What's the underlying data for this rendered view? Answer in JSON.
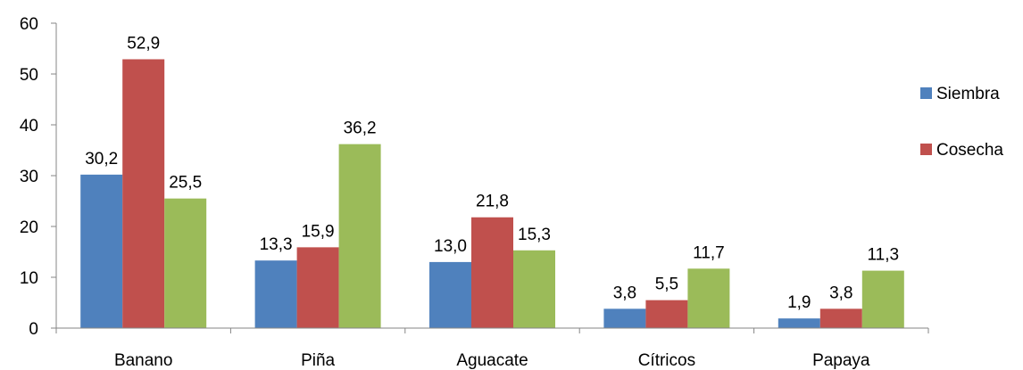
{
  "chart_data": {
    "type": "bar",
    "categories": [
      "Banano",
      "Piña",
      "Aguacate",
      "Cítricos",
      "Papaya"
    ],
    "series": [
      {
        "name": "Siembra",
        "values": [
          30.2,
          13.3,
          13.0,
          3.8,
          1.9
        ],
        "color": "#4F81BD"
      },
      {
        "name": "Cosecha",
        "values": [
          52.9,
          15.9,
          21.8,
          5.5,
          3.8
        ],
        "color": "#C0504D"
      },
      {
        "values": [
          25.5,
          36.2,
          15.3,
          11.7,
          11.3
        ],
        "color": "#9BBB59"
      }
    ],
    "data_labels": [
      [
        "30,2",
        "13,3",
        "13,0",
        "3,8",
        "1,9"
      ],
      [
        "52,9",
        "15,9",
        "21,8",
        "5,5",
        "3,8"
      ],
      [
        "25,5",
        "36,2",
        "15,3",
        "11,7",
        "11,3"
      ]
    ],
    "y_ticks": [
      "0",
      "10",
      "20",
      "30",
      "40",
      "50",
      "60"
    ],
    "ylim": [
      0,
      60
    ],
    "grid": false,
    "legend_position": "right",
    "title": "",
    "xlabel": "",
    "ylabel": ""
  }
}
